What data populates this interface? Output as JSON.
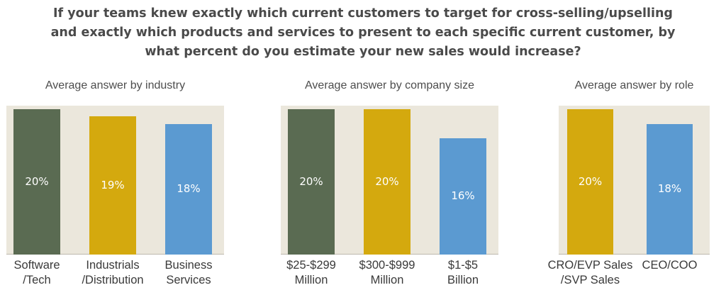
{
  "title_lines": [
    "If your teams knew exactly which current customers to target for cross-selling/upselling",
    "and exactly which products and services to present to each specific current customer, by",
    "what percent do you estimate your new sales would increase?"
  ],
  "colors": {
    "software": "#5a6b52",
    "gold": "#d4a90e",
    "blue": "#5b9ad1",
    "plot_bg": "#ebe7dc"
  },
  "chart_data": [
    {
      "type": "bar",
      "title": "Average answer by industry",
      "xlabel": "",
      "ylabel": "",
      "categories": [
        "Software /Tech",
        "Industrials /Distribution",
        "Business Services"
      ],
      "category_lines": [
        [
          "Software",
          "/Tech"
        ],
        [
          "Industrials",
          "/Distribution"
        ],
        [
          "Business",
          "Services"
        ]
      ],
      "values": [
        20,
        19,
        18
      ],
      "value_labels": [
        "20%",
        "19%",
        "18%"
      ],
      "bar_colors": [
        "#5a6b52",
        "#d4a90e",
        "#5b9ad1"
      ],
      "ylim": [
        0,
        20.5
      ],
      "grid": false,
      "legend": false
    },
    {
      "type": "bar",
      "title": "Average answer by company size",
      "xlabel": "",
      "ylabel": "",
      "categories": [
        "$25-$299 Million",
        "$300-$999 Million",
        "$1-$5 Billion"
      ],
      "category_lines": [
        [
          "$25-$299",
          "Million"
        ],
        [
          "$300-$999",
          "Million"
        ],
        [
          "$1-$5",
          "Billion"
        ]
      ],
      "values": [
        20,
        20,
        16
      ],
      "value_labels": [
        "20%",
        "20%",
        "16%"
      ],
      "bar_colors": [
        "#5a6b52",
        "#d4a90e",
        "#5b9ad1"
      ],
      "ylim": [
        0,
        20.5
      ],
      "grid": false,
      "legend": false
    },
    {
      "type": "bar",
      "title": "Average answer by role",
      "xlabel": "",
      "ylabel": "",
      "categories": [
        "CRO/EVP Sales /SVP Sales",
        "CEO/COO"
      ],
      "category_lines": [
        [
          "CRO/EVP Sales",
          "/SVP Sales"
        ],
        [
          "CEO/COO"
        ]
      ],
      "values": [
        20,
        18
      ],
      "value_labels": [
        "20%",
        "18%"
      ],
      "bar_colors": [
        "#d4a90e",
        "#5b9ad1"
      ],
      "ylim": [
        0,
        20.5
      ],
      "grid": false,
      "legend": false
    }
  ]
}
